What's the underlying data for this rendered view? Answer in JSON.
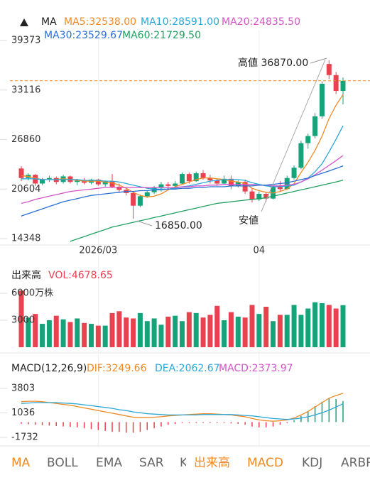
{
  "chart_data": [
    {
      "type": "candlestick",
      "title": "MA",
      "up_color": "#16a37a",
      "down_color": "#e8414f",
      "categories": [
        null,
        null,
        null,
        null,
        null,
        null,
        null,
        null,
        null,
        null,
        null,
        "2026/03",
        null,
        null,
        null,
        null,
        null,
        null,
        null,
        null,
        null,
        null,
        null,
        null,
        null,
        null,
        null,
        null,
        null,
        null,
        null,
        null,
        null,
        null,
        "04",
        null,
        null,
        null,
        null,
        null,
        null,
        null,
        null,
        null,
        null,
        null,
        null
      ],
      "open": [
        23200,
        22000,
        22400,
        21300,
        21800,
        22000,
        21500,
        22200,
        21500,
        21700,
        21400,
        21800,
        21200,
        21600,
        20900,
        20500,
        20100,
        18500,
        19700,
        20200,
        20800,
        21200,
        21000,
        21300,
        22500,
        21600,
        22600,
        22000,
        21700,
        21300,
        21900,
        21000,
        21500,
        20300,
        19300,
        20000,
        19400,
        21000,
        20600,
        22000,
        23300,
        26400,
        27300,
        29800,
        36400,
        35000,
        33000
      ],
      "high": [
        23500,
        22600,
        22500,
        22000,
        22300,
        22200,
        22400,
        22300,
        21900,
        22000,
        21900,
        21900,
        21700,
        22500,
        21300,
        20800,
        20300,
        19900,
        20400,
        21000,
        21500,
        21500,
        21600,
        22700,
        22700,
        22800,
        23000,
        22400,
        21900,
        22300,
        22300,
        21700,
        21800,
        20700,
        20300,
        20200,
        21200,
        21600,
        22300,
        23600,
        26700,
        27600,
        30200,
        34200,
        36870,
        35400,
        34700
      ],
      "low": [
        21600,
        21700,
        21000,
        21100,
        21500,
        21200,
        21300,
        21300,
        21100,
        21200,
        21200,
        21000,
        20900,
        20700,
        20200,
        19800,
        16850,
        18300,
        19500,
        20000,
        20300,
        20600,
        20700,
        21200,
        21300,
        21500,
        21800,
        21300,
        21000,
        21200,
        20600,
        20800,
        20000,
        18900,
        19100,
        19000,
        19300,
        20300,
        20500,
        21800,
        23100,
        25700,
        27000,
        29500,
        34500,
        32600,
        31300
      ],
      "close": [
        22000,
        22400,
        21300,
        21800,
        22000,
        21500,
        22200,
        21500,
        21700,
        21400,
        21800,
        21200,
        21600,
        20900,
        20500,
        20100,
        18500,
        19700,
        20200,
        20800,
        21200,
        21000,
        21300,
        22500,
        21600,
        22600,
        22000,
        21700,
        21300,
        21900,
        21000,
        21500,
        20300,
        19300,
        20000,
        19400,
        21000,
        20600,
        22000,
        23300,
        26400,
        27300,
        29800,
        33900,
        35000,
        33000,
        34280
      ],
      "ylim": [
        14348,
        39373
      ],
      "yticks": [
        14348,
        20604,
        26860,
        33116,
        39373
      ],
      "series": [
        {
          "name": "MA5:32538.00",
          "color": "#f08a24",
          "values": [
            22300,
            22200,
            22000,
            21800,
            21800,
            21800,
            21900,
            21800,
            21700,
            21600,
            21600,
            21600,
            21500,
            21400,
            21100,
            20700,
            20200,
            19800,
            19600,
            19700,
            20000,
            20500,
            20900,
            21200,
            21500,
            21800,
            22000,
            22000,
            21900,
            21800,
            21600,
            21500,
            21300,
            20700,
            20400,
            20200,
            20100,
            20300,
            20600,
            21300,
            22700,
            24000,
            25500,
            27300,
            29500,
            31200,
            32538
          ]
        },
        {
          "name": "MA10:28591.00",
          "color": "#2aa7d8",
          "values": [
            21900,
            21900,
            21900,
            21800,
            21800,
            21800,
            21800,
            21800,
            21800,
            21700,
            21700,
            21700,
            21600,
            21600,
            21500,
            21300,
            21100,
            20900,
            20700,
            20600,
            20600,
            20600,
            20700,
            20900,
            21000,
            21200,
            21400,
            21600,
            21700,
            21800,
            21800,
            21800,
            21700,
            21400,
            21200,
            21000,
            20900,
            20900,
            21000,
            21100,
            21500,
            22000,
            22800,
            23800,
            25300,
            26900,
            28591
          ]
        },
        {
          "name": "MA20:24835.50",
          "color": "#d454c8",
          "values": [
            18800,
            19000,
            19300,
            19500,
            19700,
            19900,
            20100,
            20300,
            20400,
            20500,
            20600,
            20700,
            20800,
            20800,
            20800,
            20800,
            20800,
            20800,
            20800,
            20800,
            20800,
            20800,
            20800,
            20900,
            20900,
            21000,
            21000,
            21100,
            21100,
            21200,
            21200,
            21200,
            21200,
            21200,
            21100,
            21100,
            21000,
            21000,
            21100,
            21200,
            21500,
            21900,
            22400,
            23000,
            23600,
            24200,
            24835.5
          ]
        },
        {
          "name": "MA30:23529.67",
          "color": "#2a6fd6",
          "values": [
            17200,
            17500,
            17800,
            18100,
            18400,
            18700,
            19000,
            19200,
            19400,
            19600,
            19800,
            19900,
            20000,
            20100,
            20200,
            20300,
            20300,
            20400,
            20400,
            20500,
            20500,
            20600,
            20600,
            20700,
            20700,
            20800,
            20800,
            20900,
            20900,
            20900,
            21000,
            21000,
            21000,
            21000,
            21100,
            21100,
            21200,
            21300,
            21400,
            21600,
            21800,
            22000,
            22300,
            22600,
            22900,
            23200,
            23529.67
          ]
        },
        {
          "name": "MA60:21729.50",
          "color": "#20a060",
          "values": [
            null,
            null,
            null,
            null,
            null,
            null,
            null,
            14000,
            14300,
            14600,
            14900,
            15200,
            15500,
            15800,
            16000,
            16200,
            16400,
            16600,
            16800,
            17000,
            17200,
            17400,
            17600,
            17800,
            18000,
            18200,
            18400,
            18600,
            18800,
            18900,
            19000,
            19100,
            19200,
            19300,
            19400,
            19500,
            19700,
            19900,
            20100,
            20300,
            20500,
            20700,
            20900,
            21100,
            21300,
            21500,
            21729.5
          ]
        }
      ],
      "annotations": [
        "高値 36870.00",
        "安値",
        "16850.00"
      ]
    },
    {
      "type": "bar",
      "title": "出来高",
      "ylim": [
        0,
        6000
      ],
      "yticks": [
        {
          "value": 6000,
          "label": "6000万株"
        },
        3000
      ],
      "series": [
        {
          "name": "VOL:4678.65",
          "color": "#e8414f",
          "values": [
            6300,
            3300,
            3700,
            2600,
            3000,
            3500,
            3100,
            2800,
            3200,
            2700,
            2600,
            2400,
            2400,
            3800,
            4000,
            3300,
            3200,
            3800,
            2900,
            3200,
            2500,
            3400,
            3500,
            2900,
            3900,
            3800,
            3300,
            3600,
            4600,
            3000,
            3900,
            3400,
            3300,
            4700,
            3700,
            4500,
            2900,
            3600,
            3600,
            4700,
            3600,
            4300,
            5000,
            4900,
            4700,
            4300,
            4678.65
          ]
        }
      ]
    },
    {
      "type": "macd",
      "title": "MACD(12,26,9)",
      "ylim": [
        -1732,
        3803
      ],
      "yticks": [
        -1732,
        1036,
        3803
      ],
      "series": [
        {
          "name": "DIF:3249.66",
          "color": "#f08a24",
          "values": [
            2300,
            2350,
            2350,
            2300,
            2200,
            2100,
            2000,
            1900,
            1750,
            1600,
            1450,
            1300,
            1150,
            1000,
            850,
            700,
            550,
            500,
            500,
            550,
            600,
            700,
            750,
            800,
            850,
            900,
            950,
            950,
            900,
            850,
            800,
            700,
            600,
            400,
            250,
            150,
            100,
            150,
            250,
            450,
            800,
            1200,
            1700,
            2200,
            2700,
            3000,
            3249.66
          ]
        },
        {
          "name": "DEA:2062.67",
          "color": "#2aa7d8",
          "values": [
            2100,
            2150,
            2200,
            2200,
            2200,
            2200,
            2150,
            2100,
            2050,
            1950,
            1850,
            1750,
            1650,
            1550,
            1400,
            1300,
            1150,
            1050,
            950,
            900,
            850,
            800,
            800,
            800,
            800,
            800,
            850,
            850,
            850,
            850,
            850,
            800,
            750,
            700,
            600,
            500,
            400,
            350,
            300,
            350,
            450,
            600,
            800,
            1050,
            1350,
            1700,
            2062.67
          ]
        },
        {
          "name": "MACD:2373.97",
          "color": "#d454c8",
          "values": [
            -200,
            -250,
            -300,
            -350,
            -400,
            -450,
            -500,
            -550,
            -600,
            -700,
            -800,
            -900,
            -1000,
            -1100,
            -1100,
            -1200,
            -1200,
            -1100,
            -900,
            -700,
            -500,
            -300,
            -200,
            -100,
            -100,
            -100,
            -100,
            -100,
            -100,
            -100,
            -150,
            -200,
            -300,
            -500,
            -600,
            -600,
            -500,
            -300,
            -100,
            200,
            700,
            1200,
            1800,
            2300,
            2700,
            2600,
            2373.97
          ]
        }
      ]
    }
  ],
  "tabs": [
    {
      "label": "MA",
      "active": true
    },
    {
      "label": "BOLL",
      "active": false
    },
    {
      "label": "EMA",
      "active": false
    },
    {
      "label": "SAR",
      "active": false
    },
    {
      "label": "K",
      "active": false
    },
    {
      "label": "出来高",
      "active": true
    },
    {
      "label": "MACD",
      "active": true
    },
    {
      "label": "KDJ",
      "active": false
    },
    {
      "label": "ARBR",
      "active": false
    }
  ]
}
